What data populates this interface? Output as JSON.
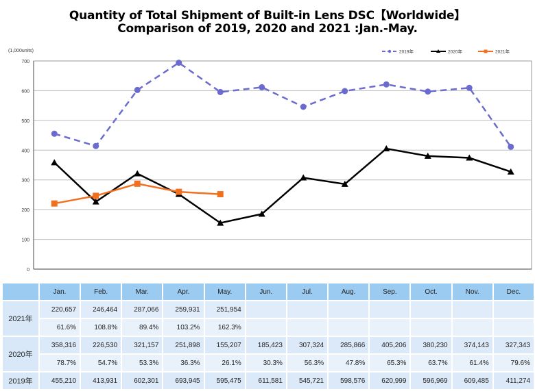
{
  "title_line1": "Quantity of Total Shipment of Built-in Lens DSC【Worldwide】",
  "title_line2": "Comparison of 2019, 2020 and 2021 :Jan.-May.",
  "chart_data": {
    "type": "line",
    "title": "Quantity of Total Shipment of Built-in Lens DSC【Worldwide】 Comparison of 2019, 2020 and 2021 :Jan.-May.",
    "unit_label": "(1,000units)",
    "xlabel": "",
    "ylabel": "(1,000units)",
    "categories": [
      "Jan.",
      "Feb.",
      "Mar.",
      "Apr.",
      "May.",
      "Jun.",
      "Jul.",
      "Aug.",
      "Sep.",
      "Oct.",
      "Nov.",
      "Dec."
    ],
    "ylim": [
      0,
      700
    ],
    "yticks": [
      0,
      100,
      200,
      300,
      400,
      500,
      600,
      700
    ],
    "grid": true,
    "legend_position": "top-right",
    "series": [
      {
        "name": "2019年",
        "color": "#6b6bcf",
        "style": "dashed",
        "marker": "circle",
        "values": [
          455.21,
          413.931,
          602.301,
          693.945,
          595.475,
          611.581,
          545.721,
          598.576,
          620.999,
          596.969,
          609.485,
          411.274
        ]
      },
      {
        "name": "2020年",
        "color": "#000000",
        "style": "solid",
        "marker": "triangle",
        "values": [
          358.316,
          226.53,
          321.157,
          251.898,
          155.207,
          185.423,
          307.324,
          285.866,
          405.206,
          380.23,
          374.143,
          327.343
        ]
      },
      {
        "name": "2021年",
        "color": "#f07020",
        "style": "solid",
        "marker": "square",
        "values": [
          220.657,
          246.464,
          287.066,
          259.931,
          251.954,
          null,
          null,
          null,
          null,
          null,
          null,
          null
        ]
      }
    ]
  },
  "table": {
    "months": [
      "Jan.",
      "Feb.",
      "Mar.",
      "Apr.",
      "May.",
      "Jun.",
      "Jul.",
      "Aug.",
      "Sep.",
      "Oct.",
      "Nov.",
      "Dec."
    ],
    "rows": [
      {
        "label": "2021年",
        "units": [
          "220,657",
          "246,464",
          "287,066",
          "259,931",
          "251,954",
          "",
          "",
          "",
          "",
          "",
          "",
          ""
        ],
        "ratio": [
          "61.6%",
          "108.8%",
          "89.4%",
          "103.2%",
          "162.3%",
          "",
          "",
          "",
          "",
          "",
          "",
          ""
        ]
      },
      {
        "label": "2020年",
        "units": [
          "358,316",
          "226,530",
          "321,157",
          "251,898",
          "155,207",
          "185,423",
          "307,324",
          "285,866",
          "405,206",
          "380,230",
          "374,143",
          "327,343"
        ],
        "ratio": [
          "78.7%",
          "54.7%",
          "53.3%",
          "36.3%",
          "26.1%",
          "30.3%",
          "56.3%",
          "47.8%",
          "65.3%",
          "63.7%",
          "61.4%",
          "79.6%"
        ]
      },
      {
        "label": "2019年",
        "units": [
          "455,210",
          "413,931",
          "602,301",
          "693,945",
          "595,475",
          "611,581",
          "545,721",
          "598,576",
          "620,999",
          "596,969",
          "609,485",
          "411,274"
        ]
      }
    ]
  }
}
